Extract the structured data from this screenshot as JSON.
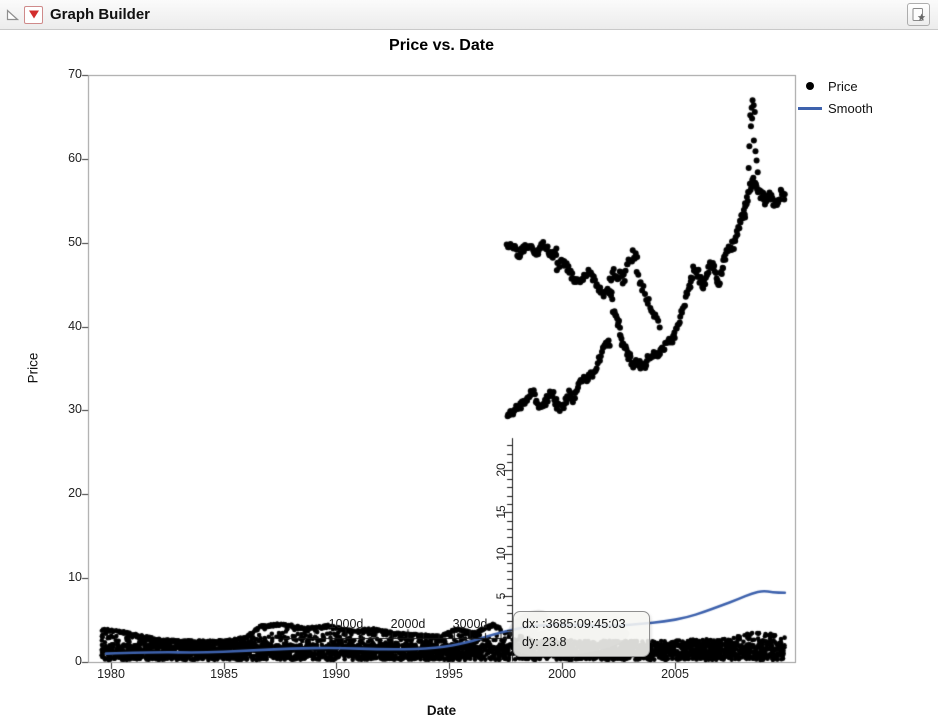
{
  "window": {
    "title": "Graph Builder"
  },
  "titlebar": {
    "disclosure_icon": "open-disclosure-triangle",
    "menu_icon": "red-triangle-menu",
    "right_icon": "bookmark-star"
  },
  "chart_data": {
    "type": "scatter",
    "title": "Price vs. Date",
    "xlabel": "Date",
    "ylabel": "Price",
    "xlim": [
      1979.0,
      2010.3
    ],
    "ylim": [
      0,
      70
    ],
    "x_ticks": [
      "1980",
      "1985",
      "1990",
      "1995",
      "2000",
      "2005"
    ],
    "x_tick_years": [
      1980,
      1985,
      1990,
      1995,
      2000,
      2005
    ],
    "y_ticks": [
      "0",
      "10",
      "20",
      "30",
      "40",
      "50",
      "60",
      "70"
    ],
    "y_tick_values": [
      0,
      10,
      20,
      30,
      40,
      50,
      60,
      70
    ],
    "grid": false,
    "legend_position": "right",
    "legend": [
      {
        "label": "Price",
        "marker": "point",
        "color": "#000000"
      },
      {
        "label": "Smooth",
        "marker": "line",
        "color": "#3E62AD"
      }
    ],
    "colors": {
      "points": "#000000",
      "smooth": "#3E62AD",
      "frame": "#9a9a9a",
      "tick": "#333333",
      "crosshair": "#141414",
      "smudge": "rgba(130,130,130,0.22)"
    },
    "series": {
      "low_band": {
        "x_range": [
          1979.6,
          2009.85
        ],
        "solid_price_range": [
          0.25,
          2.1
        ],
        "solid_count": 3200,
        "sparse_count": 850,
        "trace_step_years": 0.025,
        "trace_x_range": [
          1979.6,
          1997.3
        ],
        "top_profile": [
          [
            1979.6,
            3.9
          ],
          [
            1980.6,
            3.55
          ],
          [
            1981.3,
            3.1
          ],
          [
            1982.2,
            2.6
          ],
          [
            1983.2,
            2.45
          ],
          [
            1984.2,
            2.4
          ],
          [
            1985.2,
            2.5
          ],
          [
            1986.0,
            2.9
          ],
          [
            1986.6,
            4.2
          ],
          [
            1987.6,
            4.5
          ],
          [
            1988.6,
            4.0
          ],
          [
            1989.6,
            4.3
          ],
          [
            1990.6,
            3.7
          ],
          [
            1991.6,
            3.9
          ],
          [
            1992.6,
            3.4
          ],
          [
            1993.6,
            3.2
          ],
          [
            1994.6,
            3.0
          ],
          [
            1995.3,
            3.9
          ],
          [
            1996.1,
            3.4
          ],
          [
            1996.9,
            4.5
          ],
          [
            1997.5,
            3.6
          ],
          [
            1998.6,
            2.8
          ],
          [
            2000.0,
            2.6
          ],
          [
            2004.0,
            2.5
          ],
          [
            2007.4,
            2.8
          ],
          [
            2008.5,
            3.6
          ],
          [
            2009.85,
            3.3
          ]
        ]
      },
      "upper_segments": [
        {
          "x": [
            1997.58,
            1998.45
          ],
          "p": [
            29.4,
            31.2
          ],
          "s": 0.8,
          "n": 26
        },
        {
          "x": [
            1998.45,
            2000.55
          ],
          "p": [
            31.2,
            31.0
          ],
          "s": 1.1,
          "n": 52,
          "w": [
            0.9,
            2.5
          ]
        },
        {
          "x": [
            2000.55,
            2002.1
          ],
          "p": [
            31.6,
            38.0
          ],
          "s": 1.0,
          "n": 36,
          "w": [
            0.5,
            1.5
          ]
        },
        {
          "x": [
            1997.55,
            1999.75
          ],
          "p": [
            49.3,
            49.1
          ],
          "s": 0.95,
          "n": 62,
          "w": [
            0.55,
            3
          ]
        },
        {
          "x": [
            1999.75,
            2002.1
          ],
          "p": [
            47.2,
            44.5
          ],
          "s": 0.95,
          "n": 55,
          "w": [
            0.8,
            2
          ]
        },
        {
          "x": [
            2002.1,
            2003.3
          ],
          "p": [
            45.2,
            48.2
          ],
          "s": 1.5,
          "n": 28,
          "w": [
            0.8,
            1.5
          ]
        },
        {
          "x": [
            2002.15,
            2002.55
          ],
          "p": [
            43.5,
            39.5
          ],
          "s": 2.0,
          "n": 14
        },
        {
          "x": [
            2002.55,
            2003.15
          ],
          "p": [
            38.8,
            35.3
          ],
          "s": 1.0,
          "n": 20
        },
        {
          "x": [
            2003.15,
            2004.05
          ],
          "p": [
            35.0,
            36.4
          ],
          "s": 0.9,
          "n": 24,
          "w": [
            0.5,
            1.5
          ]
        },
        {
          "x": [
            2003.3,
            2004.3
          ],
          "p": [
            46.0,
            40.0
          ],
          "s": 1.4,
          "n": 18
        },
        {
          "x": [
            2004.05,
            2004.95
          ],
          "p": [
            36.5,
            38.6
          ],
          "s": 1.0,
          "n": 22
        },
        {
          "x": [
            2004.95,
            2005.7
          ],
          "p": [
            38.8,
            45.4
          ],
          "s": 1.0,
          "n": 20
        },
        {
          "x": [
            2005.7,
            2007.1
          ],
          "p": [
            45.8,
            46.6
          ],
          "s": 1.3,
          "n": 46,
          "w": [
            1.0,
            2
          ]
        },
        {
          "x": [
            2007.1,
            2008.1
          ],
          "p": [
            47.4,
            53.6
          ],
          "s": 1.2,
          "n": 30,
          "w": [
            0.6,
            1.5
          ]
        },
        {
          "x": [
            2008.05,
            2008.45
          ],
          "p": [
            54.2,
            57.8
          ],
          "s": 1.3,
          "n": 14
        },
        {
          "x": [
            2008.45,
            2009.0
          ],
          "p": [
            57.0,
            55.0
          ],
          "s": 1.2,
          "n": 16
        },
        {
          "x": [
            2009.0,
            2009.85
          ],
          "p": [
            55.2,
            55.4
          ],
          "s": 1.2,
          "n": 24,
          "w": [
            0.6,
            1.5
          ]
        }
      ],
      "spike_points": [
        [
          2008.25,
          58.9
        ],
        [
          2008.28,
          61.5
        ],
        [
          2008.32,
          65.2
        ],
        [
          2008.35,
          63.9
        ],
        [
          2008.38,
          66.1
        ],
        [
          2008.4,
          64.8
        ],
        [
          2008.42,
          67.0
        ],
        [
          2008.47,
          66.4
        ],
        [
          2008.48,
          62.2
        ],
        [
          2008.52,
          65.6
        ],
        [
          2008.55,
          60.9
        ],
        [
          2008.6,
          59.8
        ],
        [
          2008.65,
          58.4
        ]
      ],
      "smooth_line": [
        [
          1979.8,
          1.0
        ],
        [
          1982,
          1.2
        ],
        [
          1984,
          1.1
        ],
        [
          1986,
          1.35
        ],
        [
          1988,
          1.6
        ],
        [
          1990,
          1.7
        ],
        [
          1992,
          1.5
        ],
        [
          1994,
          1.55
        ],
        [
          1995.5,
          2.1
        ],
        [
          1996.5,
          2.9
        ],
        [
          1997.5,
          3.7
        ],
        [
          1998.5,
          4.25
        ],
        [
          1999.5,
          4.45
        ],
        [
          2000.5,
          4.4
        ],
        [
          2001.5,
          4.3
        ],
        [
          2002.5,
          4.35
        ],
        [
          2003.5,
          4.55
        ],
        [
          2004.5,
          4.8
        ],
        [
          2005.5,
          5.3
        ],
        [
          2006.3,
          6.0
        ],
        [
          2007.0,
          6.7
        ],
        [
          2007.8,
          7.5
        ],
        [
          2008.4,
          8.2
        ],
        [
          2008.9,
          8.5
        ],
        [
          2009.3,
          8.3
        ],
        [
          2009.85,
          8.25
        ]
      ]
    },
    "crosshair": {
      "anchor": {
        "year": 1987.67,
        "price": 2.85
      },
      "dx_days": 3685,
      "dy": 23.8,
      "h_tick_days": 250,
      "h_labels": [
        {
          "days": 1000,
          "text": "1000d"
        },
        {
          "days": 2000,
          "text": "2000d"
        },
        {
          "days": 3000,
          "text": "3000d"
        }
      ],
      "v_tick": 1,
      "v_labels": [
        {
          "dy": 5,
          "text": "5"
        },
        {
          "dy": 10,
          "text": "10"
        },
        {
          "dy": 15,
          "text": "15"
        },
        {
          "dy": 20,
          "text": "20"
        }
      ],
      "tooltip": {
        "dx_line": "dx: :3685:09:45:03",
        "dy_line": "dy: 23.8"
      }
    }
  }
}
